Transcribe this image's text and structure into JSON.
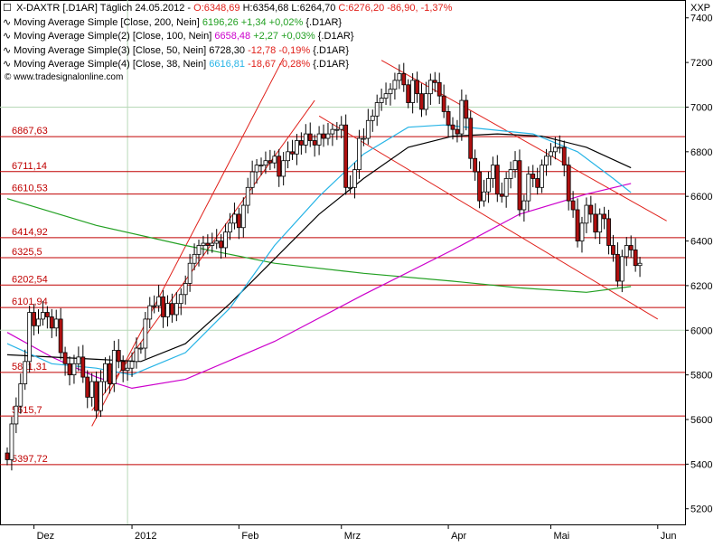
{
  "header": {
    "symbol_line": {
      "symbol": "X-DAXTR [.D1AR]",
      "period": "Täglich",
      "date": "24.05.2012",
      "open": "O:6348,69",
      "high": "H:6354,68",
      "low": "L:6264,70",
      "close": "C:6276,20",
      "change": "-86,90",
      "change_pct": "-1,37%"
    },
    "indicators": [
      {
        "name": "Moving Average Simple [Close, 200, Nein]",
        "value": "6196,26",
        "delta": "+1,34",
        "delta_pct": "+0,02%",
        "tag": "{.D1AR}",
        "color": "#22a022",
        "delta_color": "#22a022"
      },
      {
        "name": "Moving Average Simple(2) [Close, 100, Nein]",
        "value": "6658,48",
        "delta": "+2,27",
        "delta_pct": "+0,03%",
        "tag": "{.D1AR}",
        "color": "#cc00cc",
        "delta_color": "#22a022"
      },
      {
        "name": "Moving Average Simple(3) [Close, 50, Nein]",
        "value": "6728,30",
        "delta": "-12,78",
        "delta_pct": "-0,19%",
        "tag": "{.D1AR}",
        "color": "#000000",
        "delta_color": "#e0201a"
      },
      {
        "name": "Moving Average Simple(4) [Close, 38, Nein]",
        "value": "6616,81",
        "delta": "-18,67",
        "delta_pct": "-0,28%",
        "tag": "{.D1AR}",
        "color": "#27b4e6",
        "delta_color": "#e0201a"
      }
    ],
    "watermark": "www.tradesignalonline.com"
  },
  "chart_data": {
    "type": "candlestick",
    "unit_label": "XXP",
    "y_ticks": [
      5200,
      5400,
      5600,
      5800,
      6000,
      6200,
      6400,
      6600,
      6800,
      7000,
      7200,
      7400
    ],
    "y_tick_labels": [
      "5200",
      "5400",
      "5600",
      "5800",
      "6000",
      "6200",
      "6400",
      "6600",
      "6800",
      "7000",
      "7200",
      "7400"
    ],
    "ylim": [
      5130,
      7480
    ],
    "x_labels": [
      "Dez",
      "2012",
      "Feb",
      "Mrz",
      "Apr",
      "Mai",
      "Jun"
    ],
    "horizontal_levels": [
      {
        "value": 6867.63,
        "label": "6867,63"
      },
      {
        "value": 6711.14,
        "label": "6711,14"
      },
      {
        "value": 6610.53,
        "label": "6610,53"
      },
      {
        "value": 6414.92,
        "label": "6414,92"
      },
      {
        "value": 6325.5,
        "label": "6325,5"
      },
      {
        "value": 6202.54,
        "label": "6202,54"
      },
      {
        "value": 6101.94,
        "label": "6101,94"
      },
      {
        "value": 5811.31,
        "label": "5811,31"
      },
      {
        "value": 5615.7,
        "label": "5615,7"
      },
      {
        "value": 5397.72,
        "label": "5397,72"
      }
    ],
    "closes": [
      5420,
      5580,
      5660,
      5760,
      5860,
      6080,
      6020,
      6050,
      6080,
      6060,
      6010,
      6050,
      5900,
      5850,
      5800,
      5850,
      5880,
      5790,
      5700,
      5770,
      5640,
      5770,
      5850,
      5760,
      5910,
      5860,
      5820,
      5830,
      5860,
      5920,
      5920,
      6050,
      6110,
      6110,
      6150,
      6060,
      6120,
      6070,
      6120,
      6160,
      6210,
      6300,
      6340,
      6380,
      6390,
      6380,
      6390,
      6400,
      6370,
      6440,
      6480,
      6520,
      6460,
      6560,
      6640,
      6710,
      6740,
      6740,
      6760,
      6750,
      6780,
      6690,
      6760,
      6800,
      6790,
      6850,
      6830,
      6880,
      6850,
      6830,
      6880,
      6860,
      6880,
      6900,
      6900,
      6920,
      6640,
      6640,
      6720,
      6860,
      6860,
      6940,
      6960,
      7020,
      7040,
      7060,
      7080,
      7120,
      7150,
      7100,
      7020,
      7120,
      7060,
      6990,
      7060,
      7120,
      7110,
      7050,
      6980,
      6920,
      6900,
      6880,
      7030,
      6950,
      6770,
      6710,
      6580,
      6620,
      6680,
      6740,
      6610,
      6600,
      6680,
      6720,
      6760,
      6540,
      6580,
      6700,
      6680,
      6640,
      6740,
      6780,
      6800,
      6820,
      6820,
      6740,
      6580,
      6540,
      6400,
      6480,
      6560,
      6520,
      6440,
      6520,
      6500,
      6380,
      6340,
      6220,
      6330,
      6380,
      6360,
      6290,
      6300
    ],
    "series": [
      {
        "name": "Moving Average Simple [Close, 200, Nein]",
        "color": "#22a022",
        "x": [
          0,
          20,
          40,
          60,
          80,
          100,
          115,
          130,
          140
        ],
        "values": [
          6590,
          6470,
          6380,
          6300,
          6255,
          6220,
          6190,
          6170,
          6196
        ]
      },
      {
        "name": "Moving Average Simple(2) [Close, 100, Nein]",
        "color": "#cc00cc",
        "x": [
          0,
          10,
          20,
          28,
          40,
          60,
          80,
          100,
          115,
          130,
          140
        ],
        "values": [
          5990,
          5880,
          5790,
          5740,
          5780,
          5950,
          6160,
          6360,
          6520,
          6610,
          6658
        ]
      },
      {
        "name": "Moving Average Simple(3) [Close, 50, Nein]",
        "color": "#000000",
        "x": [
          0,
          10,
          20,
          30,
          40,
          50,
          60,
          70,
          80,
          90,
          100,
          110,
          120,
          130,
          140
        ],
        "values": [
          5890,
          5880,
          5870,
          5860,
          5940,
          6120,
          6320,
          6520,
          6680,
          6820,
          6870,
          6880,
          6870,
          6820,
          6728
        ]
      },
      {
        "name": "Moving Average Simple(4) [Close, 38, Nein]",
        "color": "#27b4e6",
        "x": [
          0,
          10,
          20,
          28,
          40,
          50,
          60,
          70,
          80,
          90,
          98,
          108,
          118,
          128,
          136,
          140
        ],
        "values": [
          5940,
          5850,
          5830,
          5800,
          5900,
          6100,
          6380,
          6600,
          6790,
          6910,
          6920,
          6900,
          6880,
          6800,
          6680,
          6617
        ]
      }
    ],
    "trend_channels": [
      {
        "points": [
          [
            19,
            5570
          ],
          [
            62,
            7220
          ]
        ]
      },
      {
        "points": [
          [
            19,
            5640
          ],
          [
            69,
            7030
          ]
        ]
      },
      {
        "points": [
          [
            84,
            7210
          ],
          [
            148,
            6490
          ]
        ]
      },
      {
        "points": [
          [
            70,
            6960
          ],
          [
            146,
            6050
          ]
        ]
      }
    ],
    "grid_verticals_x": [
      27
    ]
  }
}
